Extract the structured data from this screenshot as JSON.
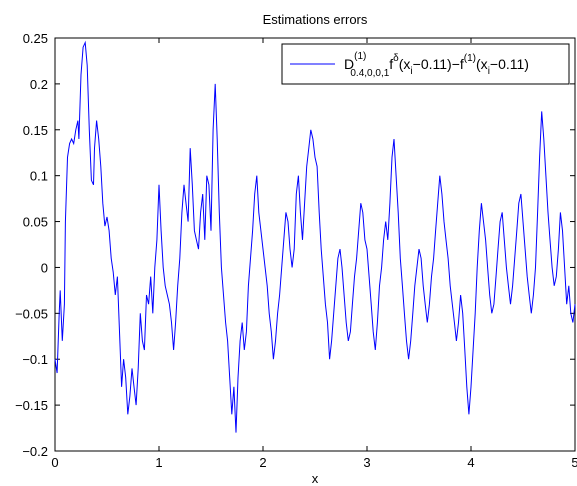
{
  "chart_data": {
    "type": "line",
    "title": "Estimations errors",
    "xlabel": "x",
    "ylabel": "",
    "xlim": [
      0,
      5
    ],
    "ylim": [
      -0.2,
      0.25
    ],
    "xticks": [
      "0",
      "1",
      "2",
      "3",
      "4",
      "5"
    ],
    "yticks": [
      "0.25",
      "0.2",
      "0.15",
      "0.1",
      "0.05",
      "0",
      "−0.05",
      "−0.1",
      "−0.15",
      "−0.2"
    ],
    "grid": false,
    "legend_position": "top-right",
    "legend": {
      "D": "D",
      "sup1": "(1)",
      "sub1": "0.4,0,0,1",
      "f1": "f",
      "sup2": "δ",
      "paren1": "(x",
      "subi1": "i",
      "mid": "−0.11)−f",
      "sup3": "(1)",
      "paren2": "(x",
      "subi2": "i",
      "end": "−0.11)"
    },
    "series": [
      {
        "color": "#0000ff",
        "points": [
          [
            0.0,
            -0.1
          ],
          [
            0.02,
            -0.115
          ],
          [
            0.04,
            -0.05
          ],
          [
            0.05,
            -0.025
          ],
          [
            0.07,
            -0.08
          ],
          [
            0.09,
            -0.04
          ],
          [
            0.1,
            0.05
          ],
          [
            0.12,
            0.12
          ],
          [
            0.14,
            0.135
          ],
          [
            0.16,
            0.14
          ],
          [
            0.18,
            0.135
          ],
          [
            0.2,
            0.15
          ],
          [
            0.22,
            0.16
          ],
          [
            0.23,
            0.14
          ],
          [
            0.25,
            0.21
          ],
          [
            0.27,
            0.24
          ],
          [
            0.29,
            0.245
          ],
          [
            0.31,
            0.22
          ],
          [
            0.33,
            0.15
          ],
          [
            0.35,
            0.095
          ],
          [
            0.37,
            0.09
          ],
          [
            0.38,
            0.13
          ],
          [
            0.4,
            0.16
          ],
          [
            0.42,
            0.14
          ],
          [
            0.44,
            0.11
          ],
          [
            0.46,
            0.07
          ],
          [
            0.48,
            0.045
          ],
          [
            0.5,
            0.055
          ],
          [
            0.52,
            0.04
          ],
          [
            0.54,
            0.01
          ],
          [
            0.56,
            -0.005
          ],
          [
            0.58,
            -0.03
          ],
          [
            0.6,
            -0.01
          ],
          [
            0.62,
            -0.07
          ],
          [
            0.64,
            -0.13
          ],
          [
            0.66,
            -0.1
          ],
          [
            0.68,
            -0.12
          ],
          [
            0.7,
            -0.16
          ],
          [
            0.72,
            -0.14
          ],
          [
            0.74,
            -0.11
          ],
          [
            0.76,
            -0.13
          ],
          [
            0.78,
            -0.15
          ],
          [
            0.8,
            -0.11
          ],
          [
            0.82,
            -0.05
          ],
          [
            0.84,
            -0.08
          ],
          [
            0.86,
            -0.09
          ],
          [
            0.88,
            -0.03
          ],
          [
            0.9,
            -0.04
          ],
          [
            0.92,
            -0.01
          ],
          [
            0.94,
            -0.05
          ],
          [
            0.96,
            0.0
          ],
          [
            0.98,
            0.03
          ],
          [
            1.0,
            0.09
          ],
          [
            1.02,
            0.04
          ],
          [
            1.04,
            0.0
          ],
          [
            1.06,
            -0.02
          ],
          [
            1.08,
            -0.03
          ],
          [
            1.1,
            -0.04
          ],
          [
            1.12,
            -0.06
          ],
          [
            1.14,
            -0.09
          ],
          [
            1.16,
            -0.06
          ],
          [
            1.18,
            -0.02
          ],
          [
            1.2,
            0.01
          ],
          [
            1.22,
            0.06
          ],
          [
            1.24,
            0.09
          ],
          [
            1.26,
            0.07
          ],
          [
            1.28,
            0.05
          ],
          [
            1.3,
            0.13
          ],
          [
            1.32,
            0.09
          ],
          [
            1.34,
            0.04
          ],
          [
            1.36,
            0.03
          ],
          [
            1.38,
            0.02
          ],
          [
            1.4,
            0.06
          ],
          [
            1.42,
            0.08
          ],
          [
            1.44,
            0.03
          ],
          [
            1.46,
            0.1
          ],
          [
            1.48,
            0.09
          ],
          [
            1.5,
            0.04
          ],
          [
            1.52,
            0.15
          ],
          [
            1.54,
            0.2
          ],
          [
            1.56,
            0.14
          ],
          [
            1.58,
            0.06
          ],
          [
            1.6,
            0.0
          ],
          [
            1.62,
            -0.03
          ],
          [
            1.64,
            -0.06
          ],
          [
            1.66,
            -0.08
          ],
          [
            1.68,
            -0.12
          ],
          [
            1.7,
            -0.16
          ],
          [
            1.72,
            -0.13
          ],
          [
            1.74,
            -0.18
          ],
          [
            1.76,
            -0.12
          ],
          [
            1.78,
            -0.08
          ],
          [
            1.8,
            -0.06
          ],
          [
            1.82,
            -0.09
          ],
          [
            1.84,
            -0.07
          ],
          [
            1.86,
            -0.02
          ],
          [
            1.88,
            0.01
          ],
          [
            1.9,
            0.04
          ],
          [
            1.92,
            0.08
          ],
          [
            1.94,
            0.1
          ],
          [
            1.96,
            0.06
          ],
          [
            1.98,
            0.04
          ],
          [
            2.0,
            0.02
          ],
          [
            2.02,
            0.0
          ],
          [
            2.04,
            -0.02
          ],
          [
            2.06,
            -0.05
          ],
          [
            2.08,
            -0.07
          ],
          [
            2.1,
            -0.1
          ],
          [
            2.12,
            -0.08
          ],
          [
            2.14,
            -0.05
          ],
          [
            2.16,
            -0.03
          ],
          [
            2.18,
            0.0
          ],
          [
            2.2,
            0.03
          ],
          [
            2.22,
            0.06
          ],
          [
            2.24,
            0.05
          ],
          [
            2.26,
            0.02
          ],
          [
            2.28,
            0.0
          ],
          [
            2.3,
            0.02
          ],
          [
            2.32,
            0.08
          ],
          [
            2.34,
            0.1
          ],
          [
            2.36,
            0.06
          ],
          [
            2.38,
            0.03
          ],
          [
            2.4,
            0.07
          ],
          [
            2.42,
            0.11
          ],
          [
            2.44,
            0.13
          ],
          [
            2.46,
            0.15
          ],
          [
            2.48,
            0.14
          ],
          [
            2.5,
            0.12
          ],
          [
            2.52,
            0.11
          ],
          [
            2.54,
            0.06
          ],
          [
            2.56,
            0.02
          ],
          [
            2.58,
            -0.01
          ],
          [
            2.6,
            -0.04
          ],
          [
            2.62,
            -0.06
          ],
          [
            2.64,
            -0.1
          ],
          [
            2.66,
            -0.08
          ],
          [
            2.68,
            -0.05
          ],
          [
            2.7,
            -0.02
          ],
          [
            2.72,
            0.01
          ],
          [
            2.74,
            0.02
          ],
          [
            2.76,
            0.0
          ],
          [
            2.78,
            -0.03
          ],
          [
            2.8,
            -0.06
          ],
          [
            2.82,
            -0.08
          ],
          [
            2.84,
            -0.07
          ],
          [
            2.86,
            -0.04
          ],
          [
            2.88,
            -0.01
          ],
          [
            2.9,
            0.01
          ],
          [
            2.92,
            0.04
          ],
          [
            2.94,
            0.07
          ],
          [
            2.96,
            0.06
          ],
          [
            2.98,
            0.03
          ],
          [
            3.0,
            0.02
          ],
          [
            3.02,
            -0.01
          ],
          [
            3.04,
            -0.04
          ],
          [
            3.06,
            -0.07
          ],
          [
            3.08,
            -0.09
          ],
          [
            3.1,
            -0.06
          ],
          [
            3.12,
            -0.02
          ],
          [
            3.14,
            0.0
          ],
          [
            3.16,
            0.03
          ],
          [
            3.18,
            0.05
          ],
          [
            3.2,
            0.03
          ],
          [
            3.22,
            0.07
          ],
          [
            3.24,
            0.12
          ],
          [
            3.26,
            0.14
          ],
          [
            3.28,
            0.1
          ],
          [
            3.3,
            0.06
          ],
          [
            3.32,
            0.01
          ],
          [
            3.34,
            -0.02
          ],
          [
            3.36,
            -0.05
          ],
          [
            3.38,
            -0.08
          ],
          [
            3.4,
            -0.1
          ],
          [
            3.42,
            -0.08
          ],
          [
            3.44,
            -0.05
          ],
          [
            3.46,
            -0.02
          ],
          [
            3.48,
            0.0
          ],
          [
            3.5,
            0.02
          ],
          [
            3.52,
            0.01
          ],
          [
            3.54,
            -0.02
          ],
          [
            3.56,
            -0.04
          ],
          [
            3.58,
            -0.06
          ],
          [
            3.6,
            -0.04
          ],
          [
            3.62,
            -0.01
          ],
          [
            3.64,
            0.01
          ],
          [
            3.66,
            0.04
          ],
          [
            3.68,
            0.07
          ],
          [
            3.7,
            0.1
          ],
          [
            3.72,
            0.08
          ],
          [
            3.74,
            0.05
          ],
          [
            3.76,
            0.03
          ],
          [
            3.78,
            0.01
          ],
          [
            3.8,
            -0.02
          ],
          [
            3.82,
            -0.04
          ],
          [
            3.84,
            -0.06
          ],
          [
            3.86,
            -0.08
          ],
          [
            3.88,
            -0.06
          ],
          [
            3.9,
            -0.03
          ],
          [
            3.92,
            -0.05
          ],
          [
            3.94,
            -0.09
          ],
          [
            3.96,
            -0.13
          ],
          [
            3.98,
            -0.16
          ],
          [
            4.0,
            -0.13
          ],
          [
            4.02,
            -0.09
          ],
          [
            4.04,
            -0.05
          ],
          [
            4.06,
            0.0
          ],
          [
            4.08,
            0.04
          ],
          [
            4.1,
            0.07
          ],
          [
            4.12,
            0.05
          ],
          [
            4.14,
            0.03
          ],
          [
            4.16,
            0.0
          ],
          [
            4.18,
            -0.03
          ],
          [
            4.2,
            -0.05
          ],
          [
            4.22,
            -0.04
          ],
          [
            4.24,
            -0.01
          ],
          [
            4.26,
            0.02
          ],
          [
            4.28,
            0.05
          ],
          [
            4.3,
            0.06
          ],
          [
            4.32,
            0.03
          ],
          [
            4.34,
            0.0
          ],
          [
            4.36,
            -0.02
          ],
          [
            4.38,
            -0.04
          ],
          [
            4.4,
            -0.02
          ],
          [
            4.42,
            0.01
          ],
          [
            4.44,
            0.04
          ],
          [
            4.46,
            0.07
          ],
          [
            4.48,
            0.08
          ],
          [
            4.5,
            0.05
          ],
          [
            4.52,
            0.02
          ],
          [
            4.54,
            -0.01
          ],
          [
            4.56,
            -0.03
          ],
          [
            4.58,
            -0.05
          ],
          [
            4.6,
            -0.03
          ],
          [
            4.62,
            0.0
          ],
          [
            4.64,
            0.06
          ],
          [
            4.66,
            0.12
          ],
          [
            4.68,
            0.17
          ],
          [
            4.7,
            0.14
          ],
          [
            4.72,
            0.1
          ],
          [
            4.74,
            0.06
          ],
          [
            4.76,
            0.03
          ],
          [
            4.78,
            0.0
          ],
          [
            4.8,
            -0.02
          ],
          [
            4.82,
            -0.01
          ],
          [
            4.84,
            0.02
          ],
          [
            4.86,
            0.06
          ],
          [
            4.88,
            0.04
          ],
          [
            4.9,
            0.0
          ],
          [
            4.92,
            -0.04
          ],
          [
            4.94,
            -0.02
          ],
          [
            4.96,
            -0.05
          ],
          [
            4.98,
            -0.06
          ],
          [
            5.0,
            -0.04
          ]
        ]
      }
    ]
  }
}
